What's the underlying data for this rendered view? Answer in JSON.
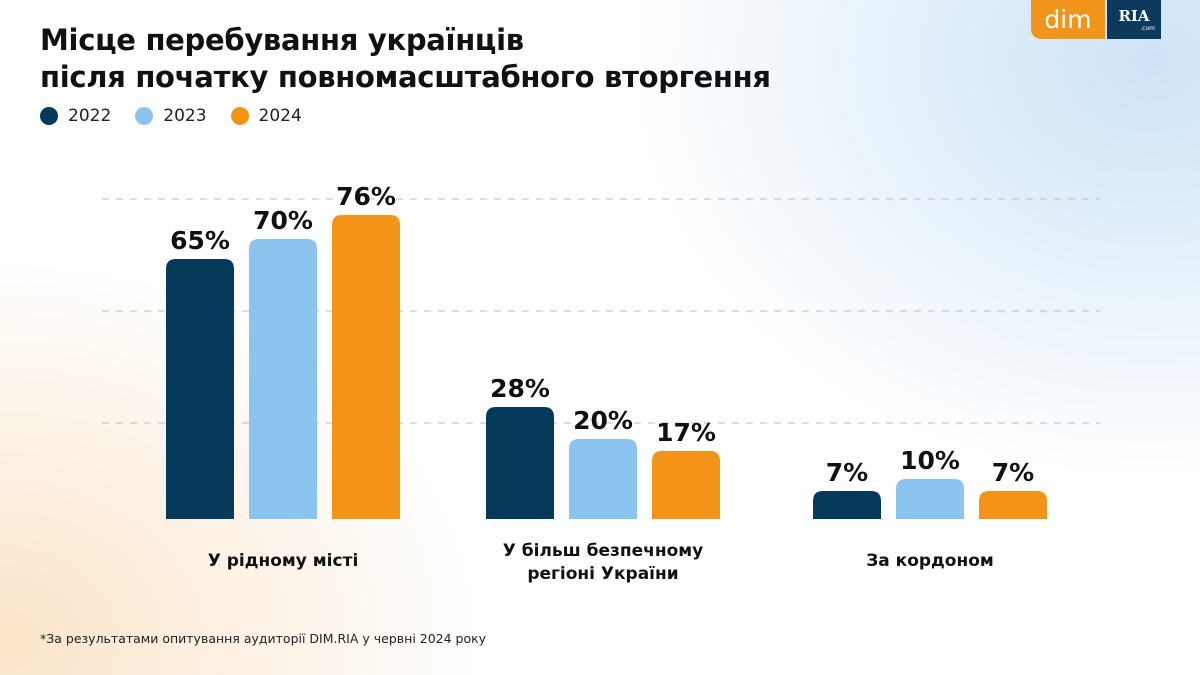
{
  "title_lines": [
    "Місце перебування українців",
    "після початку повномасштабного вторгення"
  ],
  "logo": {
    "left": "dim",
    "right": "RIA",
    "right_sub": ".com"
  },
  "footnote": "*За результатами опитування аудиторії DIM.RIA у червні 2024 року",
  "colors": {
    "2022": "#053a5b",
    "2023": "#8cc4f0",
    "2024": "#f39318"
  },
  "chart_data": {
    "type": "bar",
    "title": "Місце перебування українців після початку повномасштабного вторгення",
    "categories": [
      [
        "У рідному місті"
      ],
      [
        "У більш безпечному",
        "регіоні України"
      ],
      [
        "За кордоном"
      ]
    ],
    "series": [
      {
        "name": "2022",
        "values": [
          65,
          28,
          7
        ]
      },
      {
        "name": "2023",
        "values": [
          70,
          20,
          10
        ]
      },
      {
        "name": "2024",
        "values": [
          76,
          17,
          7
        ]
      }
    ],
    "unit": "%",
    "grid": true,
    "legend_position": "top-left"
  }
}
